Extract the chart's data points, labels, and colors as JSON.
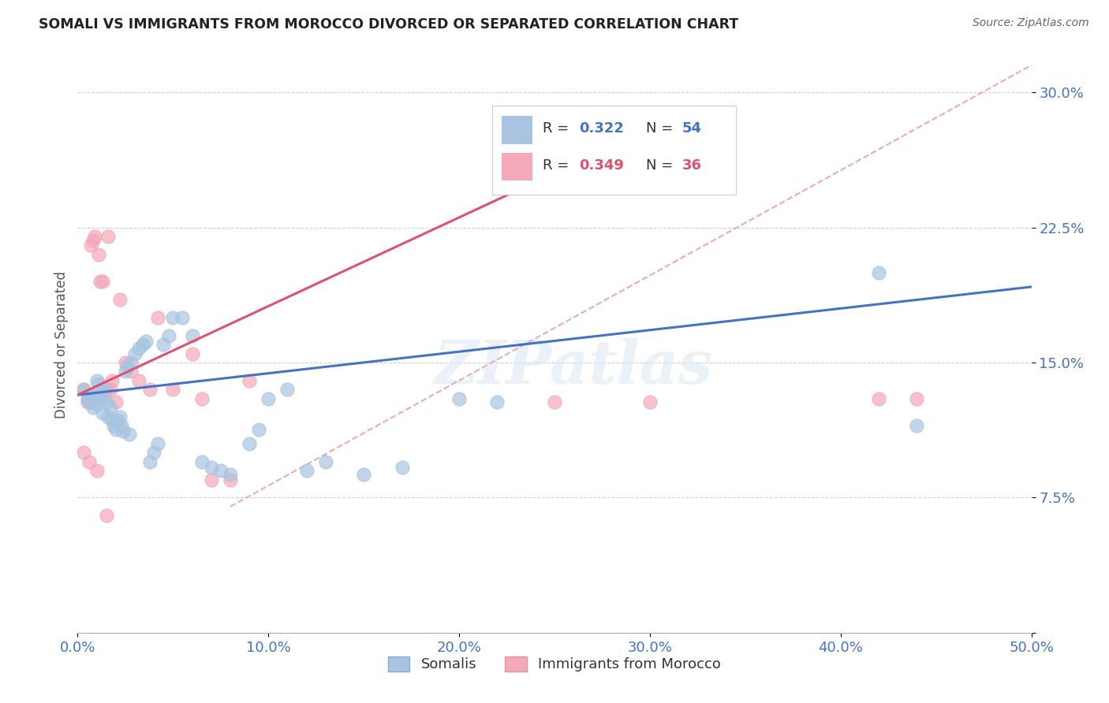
{
  "title": "SOMALI VS IMMIGRANTS FROM MOROCCO DIVORCED OR SEPARATED CORRELATION CHART",
  "source": "Source: ZipAtlas.com",
  "ylabel": "Divorced or Separated",
  "xlim": [
    0.0,
    0.5
  ],
  "ylim": [
    0.0,
    0.32
  ],
  "xticks": [
    0.0,
    0.1,
    0.2,
    0.3,
    0.4,
    0.5
  ],
  "xtick_labels": [
    "0.0%",
    "10.0%",
    "20.0%",
    "30.0%",
    "40.0%",
    "50.0%"
  ],
  "yticks": [
    0.0,
    0.075,
    0.15,
    0.225,
    0.3
  ],
  "ytick_labels": [
    "",
    "7.5%",
    "15.0%",
    "22.5%",
    "30.0%"
  ],
  "somali_color": "#a8c4e0",
  "morocco_color": "#f4a8b8",
  "somali_line_color": "#4472c4",
  "morocco_line_color": "#e05070",
  "diagonal_line_color": "#e8a0b0",
  "legend_label1": "Somalis",
  "legend_label2": "Immigrants from Morocco",
  "watermark": "ZIPatlas",
  "title_color": "#222222",
  "axis_color": "#4472c4",
  "somali_x": [
    0.003,
    0.005,
    0.006,
    0.007,
    0.008,
    0.009,
    0.01,
    0.01,
    0.011,
    0.012,
    0.013,
    0.014,
    0.015,
    0.016,
    0.017,
    0.018,
    0.019,
    0.02,
    0.021,
    0.022,
    0.023,
    0.024,
    0.025,
    0.026,
    0.027,
    0.028,
    0.03,
    0.032,
    0.034,
    0.036,
    0.038,
    0.04,
    0.042,
    0.045,
    0.048,
    0.05,
    0.055,
    0.06,
    0.065,
    0.07,
    0.075,
    0.08,
    0.09,
    0.095,
    0.1,
    0.11,
    0.12,
    0.13,
    0.15,
    0.17,
    0.2,
    0.22,
    0.42,
    0.44
  ],
  "somali_y": [
    0.135,
    0.13,
    0.128,
    0.132,
    0.125,
    0.133,
    0.127,
    0.14,
    0.138,
    0.13,
    0.122,
    0.135,
    0.128,
    0.12,
    0.125,
    0.118,
    0.115,
    0.113,
    0.118,
    0.12,
    0.115,
    0.112,
    0.145,
    0.148,
    0.11,
    0.15,
    0.155,
    0.158,
    0.16,
    0.162,
    0.095,
    0.1,
    0.105,
    0.16,
    0.165,
    0.175,
    0.175,
    0.165,
    0.095,
    0.092,
    0.09,
    0.088,
    0.105,
    0.113,
    0.13,
    0.135,
    0.09,
    0.095,
    0.088,
    0.092,
    0.13,
    0.128,
    0.2,
    0.115
  ],
  "morocco_x": [
    0.003,
    0.005,
    0.006,
    0.007,
    0.008,
    0.009,
    0.01,
    0.011,
    0.012,
    0.013,
    0.014,
    0.015,
    0.016,
    0.017,
    0.018,
    0.02,
    0.022,
    0.025,
    0.028,
    0.032,
    0.038,
    0.042,
    0.05,
    0.06,
    0.065,
    0.07,
    0.08,
    0.09,
    0.25,
    0.3,
    0.42,
    0.44,
    0.003,
    0.006,
    0.01,
    0.015
  ],
  "morocco_y": [
    0.135,
    0.128,
    0.132,
    0.215,
    0.218,
    0.22,
    0.13,
    0.21,
    0.195,
    0.195,
    0.132,
    0.135,
    0.22,
    0.135,
    0.14,
    0.128,
    0.185,
    0.15,
    0.145,
    0.14,
    0.135,
    0.175,
    0.135,
    0.155,
    0.13,
    0.085,
    0.085,
    0.14,
    0.128,
    0.128,
    0.13,
    0.13,
    0.1,
    0.095,
    0.09,
    0.065
  ],
  "somali_line_x": [
    0.0,
    0.5
  ],
  "somali_line_y": [
    0.132,
    0.192
  ],
  "morocco_line_x": [
    0.0,
    0.27
  ],
  "morocco_line_y": [
    0.132,
    0.265
  ],
  "diag_line_x": [
    0.08,
    0.5
  ],
  "diag_line_y": [
    0.07,
    0.315
  ]
}
